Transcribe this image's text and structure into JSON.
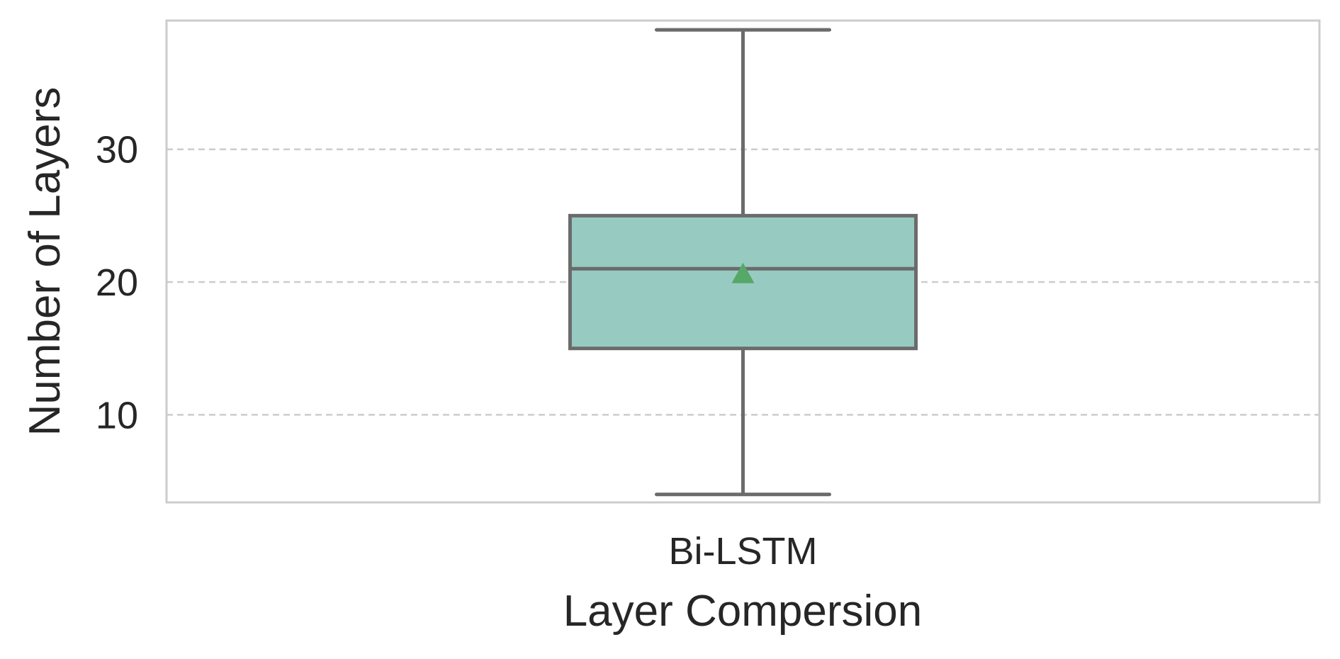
{
  "chart_data": {
    "type": "box",
    "xlabel": "Layer Compersion",
    "ylabel": "Number of Layers",
    "categories": [
      "Bi-LSTM"
    ],
    "series": [
      {
        "category": "Bi-LSTM",
        "whisker_low": 4,
        "q1": 15,
        "median": 21,
        "q3": 25,
        "whisker_high": 39,
        "mean": 20.6
      }
    ],
    "ylim": [
      3.4,
      39.7
    ],
    "yticks": [
      10,
      20,
      30
    ],
    "ytick_labels": [
      "10",
      "20",
      "30"
    ],
    "grid": "horizontal-dashed",
    "colors": {
      "box_fill": "#97cbc2",
      "box_edge": "#6b6b6b",
      "mean_marker": "#55a868",
      "grid": "#cccccc",
      "frame": "#cccccc",
      "text": "#262626"
    }
  }
}
